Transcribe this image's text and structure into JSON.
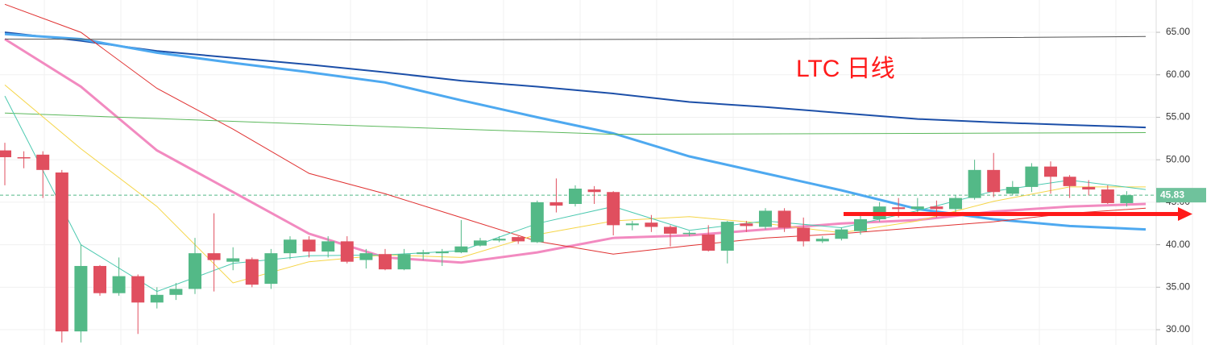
{
  "chart_data": {
    "type": "candlestick",
    "title": "LTC 日线",
    "ylim": [
      28.2,
      68.8
    ],
    "yticks": [
      {
        "value": 30,
        "label": "30.00"
      },
      {
        "value": 35,
        "label": "35.00"
      },
      {
        "value": 40,
        "label": "40.00"
      },
      {
        "value": 45,
        "label": "45.00"
      },
      {
        "value": 50,
        "label": "50.00"
      },
      {
        "value": 55,
        "label": "55.00"
      },
      {
        "value": 60,
        "label": "60.00"
      },
      {
        "value": 65,
        "label": "65.00"
      }
    ],
    "grid": true,
    "last_price": 45.83,
    "up_color": "#53b987",
    "down_color": "#e04f5f",
    "candles": {
      "open": [
        51.1,
        50.3,
        50.6,
        48.5,
        29.8,
        37.5,
        34.3,
        36.3,
        33.2,
        34.1,
        34.8,
        39.0,
        38.0,
        38.3,
        35.4,
        39.0,
        40.6,
        39.2,
        40.4,
        38.2,
        38.9,
        37.1,
        38.9,
        39.0,
        39.1,
        39.9,
        40.5,
        40.9,
        40.3,
        45.0,
        44.8,
        46.5,
        46.2,
        42.3,
        42.6,
        42.1,
        41.3,
        41.2,
        39.3,
        42.5,
        42.1,
        44.0,
        42.0,
        40.4,
        40.7,
        41.6,
        43.0,
        44.4,
        44.2,
        44.5,
        44.2,
        45.5,
        48.8,
        46.0,
        46.8,
        49.2,
        48.0,
        46.8,
        46.5,
        44.9
      ],
      "close": [
        50.3,
        50.2,
        48.8,
        29.8,
        37.5,
        34.3,
        36.3,
        33.2,
        34.1,
        34.8,
        39.0,
        38.2,
        38.4,
        35.3,
        39.0,
        40.6,
        39.2,
        40.4,
        38.0,
        39.0,
        37.1,
        38.9,
        39.1,
        39.2,
        39.8,
        40.5,
        40.7,
        40.4,
        45.0,
        44.6,
        46.6,
        46.2,
        42.3,
        42.5,
        42.1,
        41.3,
        41.4,
        39.3,
        42.7,
        42.2,
        44.0,
        42.0,
        40.4,
        40.7,
        41.8,
        43.0,
        44.5,
        44.2,
        44.5,
        44.2,
        45.5,
        48.8,
        46.2,
        46.8,
        49.2,
        48.0,
        46.9,
        46.5,
        44.9,
        45.83
      ],
      "high": [
        52.0,
        51.0,
        51.0,
        48.8,
        40.0,
        37.6,
        38.5,
        36.5,
        35.0,
        35.5,
        40.8,
        43.7,
        39.7,
        38.5,
        39.5,
        41.0,
        41.0,
        41.0,
        41.0,
        39.5,
        39.5,
        39.5,
        39.4,
        39.5,
        42.9,
        40.8,
        41.0,
        41.0,
        45.2,
        47.8,
        47.0,
        46.9,
        46.3,
        42.8,
        43.5,
        42.3,
        41.6,
        42.3,
        42.8,
        42.8,
        44.3,
        44.3,
        43.2,
        41.0,
        42.0,
        43.5,
        45.0,
        45.5,
        45.5,
        45.2,
        45.8,
        50.0,
        50.8,
        47.5,
        49.6,
        49.8,
        48.2,
        47.6,
        47.0,
        46.3
      ],
      "low": [
        47.0,
        49.0,
        45.5,
        28.5,
        28.5,
        34.0,
        34.0,
        29.5,
        32.5,
        33.5,
        34.2,
        34.5,
        37.0,
        35.0,
        34.8,
        38.3,
        38.5,
        38.5,
        37.8,
        37.2,
        37.0,
        37.0,
        38.2,
        37.5,
        39.0,
        39.8,
        40.3,
        40.1,
        40.2,
        43.8,
        44.5,
        44.8,
        41.1,
        41.7,
        41.5,
        39.8,
        41.0,
        39.2,
        37.8,
        41.5,
        41.8,
        41.5,
        39.8,
        40.2,
        40.5,
        41.2,
        42.7,
        43.2,
        43.7,
        43.2,
        43.8,
        45.3,
        45.6,
        45.8,
        46.2,
        46.0,
        45.5,
        45.8,
        44.8,
        44.5
      ]
    },
    "lines": [
      {
        "color": "#1c4fa8",
        "width": 2,
        "x": [
          0,
          4,
          8,
          12,
          16,
          20,
          24,
          28,
          32,
          36,
          40,
          44,
          48,
          52,
          56,
          60
        ],
        "values": [
          65.0,
          64.0,
          62.8,
          62.0,
          61.2,
          60.3,
          59.3,
          58.6,
          57.8,
          56.8,
          56.2,
          55.5,
          54.8,
          54.4,
          54.1,
          53.8
        ]
      },
      {
        "color": "#4ea9f0",
        "width": 3,
        "x": [
          0,
          4,
          8,
          12,
          16,
          20,
          24,
          28,
          32,
          36,
          40,
          44,
          48,
          52,
          56,
          60
        ],
        "values": [
          64.8,
          64.2,
          62.6,
          61.4,
          60.3,
          59.1,
          57.0,
          55.0,
          53.1,
          50.4,
          48.4,
          46.4,
          44.2,
          43.0,
          42.2,
          41.8
        ]
      },
      {
        "color": "#f28ac0",
        "width": 3,
        "x": [
          0,
          4,
          8,
          12,
          16,
          20,
          24,
          28,
          32,
          36,
          40,
          44,
          48,
          52,
          56,
          60
        ],
        "values": [
          64.2,
          58.6,
          51.1,
          46.2,
          41.3,
          38.5,
          37.9,
          39.1,
          40.8,
          41.1,
          41.8,
          42.5,
          42.9,
          43.9,
          44.5,
          44.8
        ]
      },
      {
        "color": "#e03030",
        "width": 1,
        "x": [
          0,
          4,
          8,
          12,
          16,
          20,
          24,
          28,
          32,
          36,
          40,
          44,
          48,
          52,
          56,
          60
        ],
        "values": [
          68.3,
          65.0,
          58.4,
          53.6,
          48.4,
          46.0,
          43.2,
          40.4,
          38.9,
          39.9,
          40.8,
          41.3,
          42.0,
          42.7,
          43.7,
          44.3
        ]
      },
      {
        "color": "#555555",
        "width": 1,
        "x": [
          0,
          20,
          40,
          60
        ],
        "values": [
          64.2,
          64.1,
          64.2,
          64.5
        ]
      },
      {
        "color": "#5cb85c",
        "width": 1,
        "x": [
          0,
          16,
          32,
          48,
          60
        ],
        "values": [
          55.5,
          54.2,
          53.0,
          53.1,
          53.2
        ]
      },
      {
        "color": "#f5d547",
        "width": 1,
        "x": [
          0,
          4,
          8,
          12,
          16,
          20,
          24,
          28,
          32,
          36,
          40,
          44,
          48,
          52,
          56,
          60
        ],
        "values": [
          58.8,
          51.3,
          44.5,
          35.5,
          38.0,
          38.8,
          38.5,
          41.2,
          42.8,
          43.3,
          42.5,
          41.4,
          42.8,
          45.1,
          46.8,
          46.8
        ]
      },
      {
        "color": "#4cc9b0",
        "width": 1,
        "x": [
          0,
          4,
          8,
          12,
          16,
          20,
          24,
          28,
          32,
          36,
          40,
          44,
          48,
          52,
          56,
          60
        ],
        "values": [
          57.5,
          40.0,
          34.5,
          37.8,
          38.7,
          38.8,
          39.3,
          42.5,
          44.5,
          41.7,
          42.8,
          42.0,
          44.0,
          46.3,
          47.6,
          46.5
        ]
      }
    ]
  }
}
